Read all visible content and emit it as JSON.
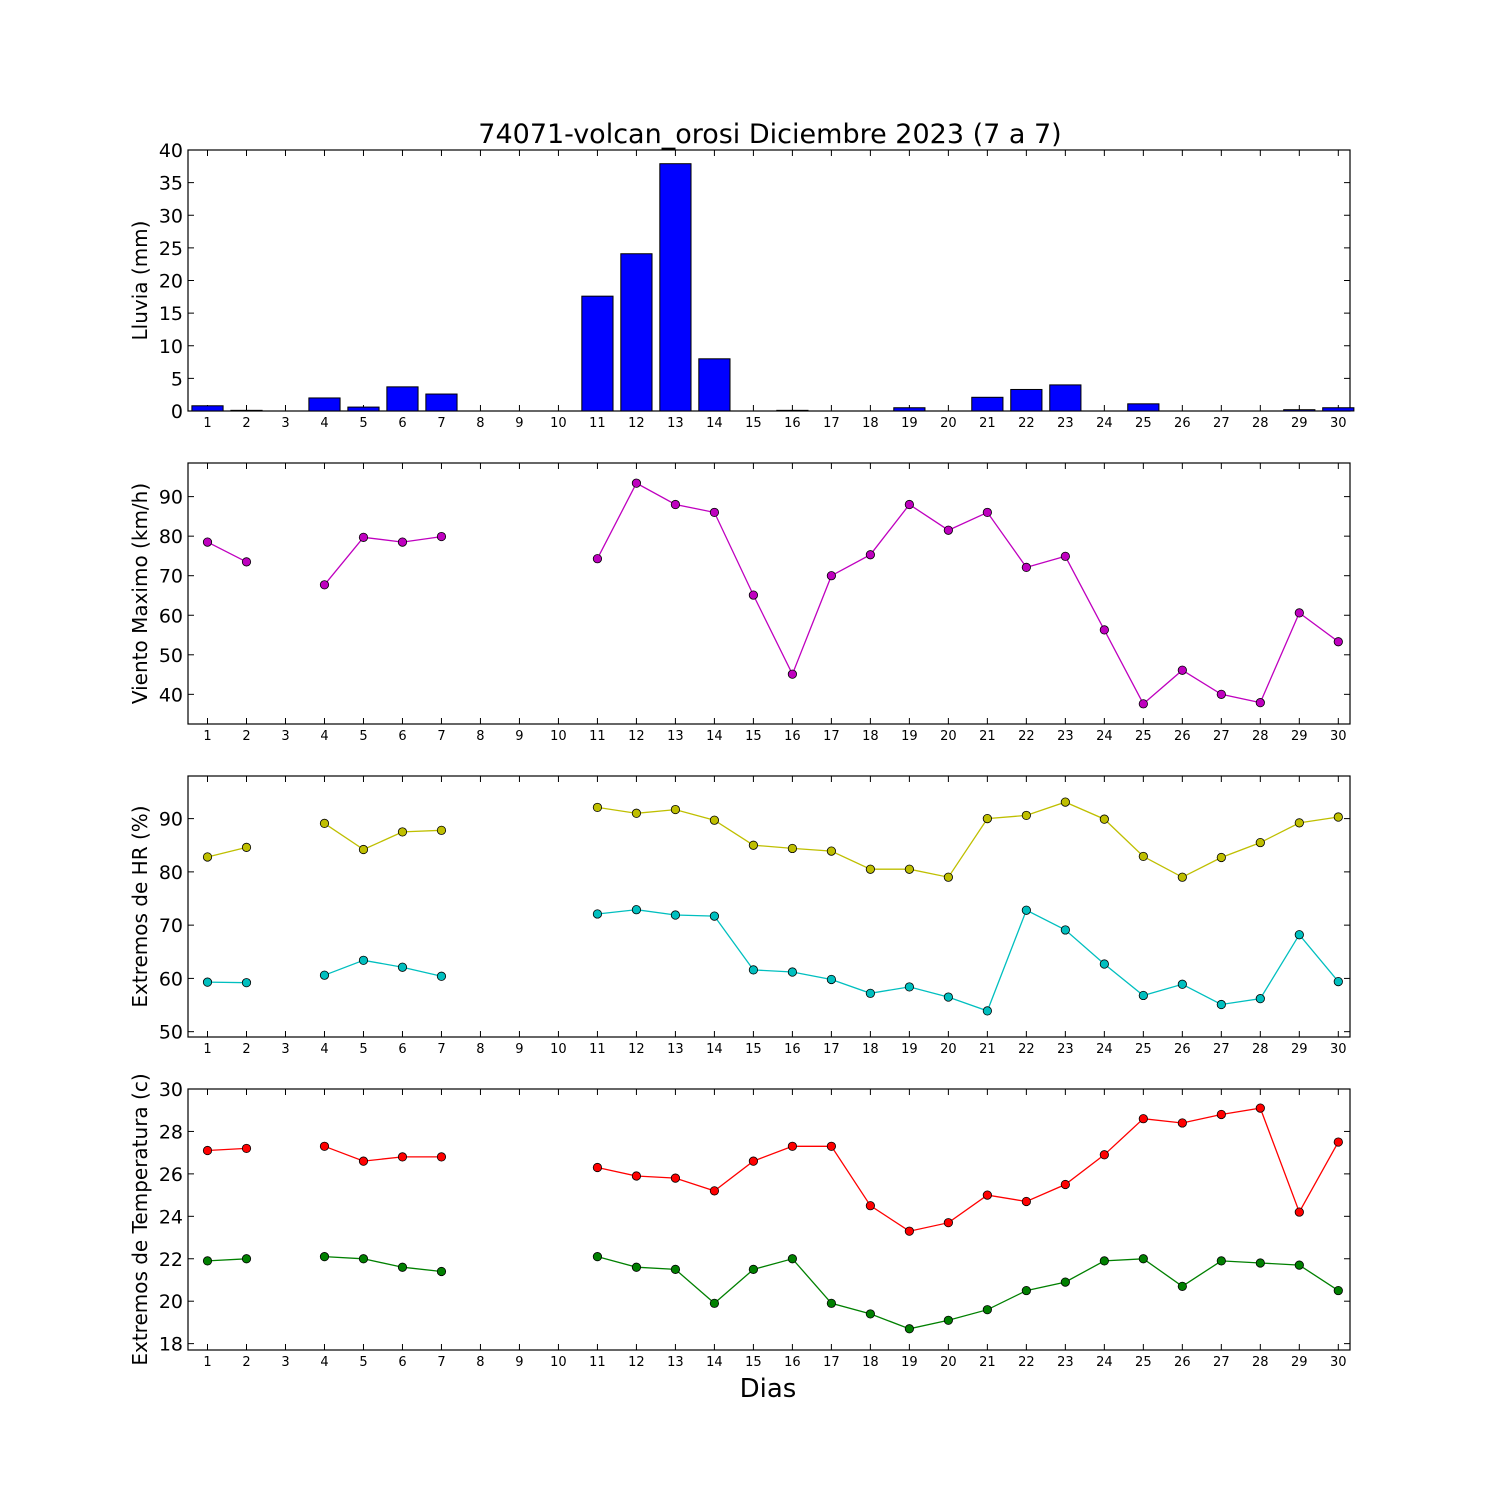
{
  "title": "74071-volcan_orosi Diciembre 2023  (7 a 7)",
  "xlabel": "Dias",
  "chart_data": [
    {
      "type": "bar",
      "ylabel": "Lluvia (mm)",
      "ylim": [
        0,
        40
      ],
      "yticks": [
        0,
        5,
        10,
        15,
        20,
        25,
        30,
        35,
        40
      ],
      "categories": [
        1,
        2,
        3,
        4,
        5,
        6,
        7,
        8,
        9,
        10,
        11,
        12,
        13,
        14,
        15,
        16,
        17,
        18,
        19,
        20,
        21,
        22,
        23,
        24,
        25,
        26,
        27,
        28,
        29,
        30
      ],
      "series": [
        {
          "color": "#0000ff",
          "values": [
            0.8,
            0.1,
            0,
            2,
            0.6,
            3.7,
            2.6,
            0,
            0,
            0,
            17.6,
            24.1,
            37.9,
            8,
            0,
            0.1,
            0,
            0,
            0.5,
            0,
            2.1,
            3.3,
            4,
            0,
            1.1,
            0,
            0,
            0,
            0.2,
            0.5
          ]
        }
      ]
    },
    {
      "type": "line",
      "ylabel": "Viento Maximo (km/h)",
      "ylim": [
        32.5,
        98.5
      ],
      "yticks": [
        40,
        50,
        60,
        70,
        80,
        90
      ],
      "x": [
        1,
        2,
        3,
        4,
        5,
        6,
        7,
        8,
        9,
        10,
        11,
        12,
        13,
        14,
        15,
        16,
        17,
        18,
        19,
        20,
        21,
        22,
        23,
        24,
        25,
        26,
        27,
        28,
        29,
        30
      ],
      "series": [
        {
          "color": "#bf00bf",
          "values": [
            78.5,
            73.5,
            null,
            67.7,
            79.7,
            78.5,
            79.9,
            null,
            null,
            null,
            74.3,
            93.4,
            88,
            86,
            65.1,
            45.1,
            70,
            75.3,
            88,
            81.5,
            86,
            72.1,
            74.9,
            56.3,
            37.6,
            46.1,
            40,
            37.9,
            60.6,
            53.3
          ]
        }
      ]
    },
    {
      "type": "line",
      "ylabel": "Extremos de HR (%)",
      "ylim": [
        49,
        98
      ],
      "yticks": [
        50,
        60,
        70,
        80,
        90
      ],
      "x": [
        1,
        2,
        3,
        4,
        5,
        6,
        7,
        8,
        9,
        10,
        11,
        12,
        13,
        14,
        15,
        16,
        17,
        18,
        19,
        20,
        21,
        22,
        23,
        24,
        25,
        26,
        27,
        28,
        29,
        30
      ],
      "series": [
        {
          "color": "#bfbf00",
          "values": [
            82.8,
            84.6,
            null,
            89.1,
            84.2,
            87.5,
            87.8,
            null,
            null,
            null,
            92.1,
            91,
            91.7,
            89.7,
            85,
            84.4,
            83.9,
            80.5,
            80.5,
            79,
            90,
            90.6,
            93.1,
            89.9,
            82.9,
            79,
            82.7,
            85.5,
            89.2,
            90.3
          ]
        },
        {
          "color": "#00bfbf",
          "values": [
            59.3,
            59.2,
            null,
            60.6,
            63.4,
            62.1,
            60.4,
            null,
            null,
            null,
            72.1,
            72.9,
            71.9,
            71.7,
            61.6,
            61.2,
            59.8,
            57.2,
            58.4,
            56.5,
            53.9,
            72.8,
            69.1,
            62.7,
            56.8,
            58.9,
            55.1,
            56.2,
            68.2,
            59.4
          ]
        }
      ]
    },
    {
      "type": "line",
      "ylabel": "Extremos de Temperatura (c)",
      "ylim": [
        17.7,
        30
      ],
      "yticks": [
        18,
        20,
        22,
        24,
        26,
        28,
        30
      ],
      "x": [
        1,
        2,
        3,
        4,
        5,
        6,
        7,
        8,
        9,
        10,
        11,
        12,
        13,
        14,
        15,
        16,
        17,
        18,
        19,
        20,
        21,
        22,
        23,
        24,
        25,
        26,
        27,
        28,
        29,
        30
      ],
      "series": [
        {
          "color": "#ff0000",
          "values": [
            27.1,
            27.2,
            null,
            27.3,
            26.6,
            26.8,
            26.8,
            null,
            null,
            null,
            26.3,
            25.9,
            25.8,
            25.2,
            26.6,
            27.3,
            27.3,
            24.5,
            23.3,
            23.7,
            25,
            24.7,
            25.5,
            26.9,
            28.6,
            28.4,
            28.8,
            29.1,
            24.2,
            27.5
          ]
        },
        {
          "color": "#008000",
          "values": [
            21.9,
            22,
            null,
            22.1,
            22,
            21.6,
            21.4,
            null,
            null,
            null,
            22.1,
            21.6,
            21.5,
            19.9,
            21.5,
            22,
            19.9,
            19.4,
            18.7,
            19.1,
            19.6,
            20.5,
            20.9,
            21.9,
            22,
            20.7,
            21.9,
            21.8,
            21.7,
            20.5
          ]
        }
      ]
    }
  ]
}
